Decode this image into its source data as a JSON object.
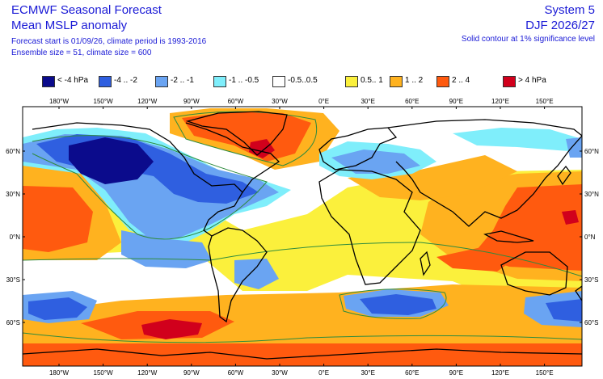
{
  "header": {
    "title": "ECMWF Seasonal Forecast",
    "subtitle": "Mean MSLP anomaly",
    "forecast_info": "Forecast start is 01/09/26, climate period is 1993-2016",
    "ensemble_info": "Ensemble size = 51, climate size = 600",
    "system": "System 5",
    "season": "DJF 2026/27",
    "contour_note": "Solid contour at 1% significance level"
  },
  "legend": [
    {
      "label": "< -4 hPa",
      "color": "#0b0b8c"
    },
    {
      "label": "-4 .. -2",
      "color": "#2f5fe0"
    },
    {
      "label": "-2 .. -1",
      "color": "#6aa4f2"
    },
    {
      "label": "-1 .. -0.5",
      "color": "#7feefb"
    },
    {
      "label": "-0.5..0.5",
      "color": "#ffffff"
    },
    {
      "label": "0.5.. 1",
      "color": "#fbf03c"
    },
    {
      "label": "1 .. 2",
      "color": "#ffb21f"
    },
    {
      "label": "2 .. 4",
      "color": "#ff5a0f"
    },
    {
      "label": "> 4 hPa",
      "color": "#d1001c"
    }
  ],
  "map": {
    "lon_ticks": [
      "180°W",
      "150°W",
      "120°W",
      "90°W",
      "60°W",
      "30°W",
      "0°E",
      "30°E",
      "60°E",
      "90°E",
      "120°E",
      "150°E"
    ],
    "lat_ticks_left": [
      "60°N",
      "30°N",
      "0°N",
      "30°S",
      "60°S"
    ],
    "lat_ticks_right": [
      "60°N",
      "30°N",
      "0°N",
      "30°S",
      "60°S"
    ],
    "colors": {
      "white": "#ffffff",
      "yellow": "#fbf03c",
      "orange": "#ffb21f",
      "red_orange": "#ff5a0f",
      "red": "#d1001c",
      "cyan": "#7feefb",
      "light_blue": "#6aa4f2",
      "blue": "#2f5fe0",
      "dark_blue": "#0b0b8c",
      "contour": "#2e8b3e",
      "coast": "#000000"
    }
  }
}
